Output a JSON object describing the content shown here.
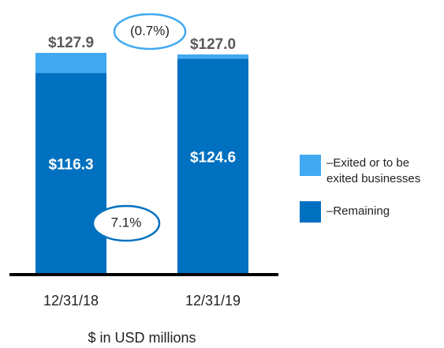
{
  "chart_data": {
    "type": "stacked_bar",
    "subtitle": "$ in USD millions",
    "categories": [
      "12/31/18",
      "12/31/19"
    ],
    "series": [
      {
        "name": "–Remaining",
        "color": "#0070c0",
        "values": [
          116.3,
          124.6
        ],
        "value_labels": [
          "$116.3",
          "$124.6"
        ]
      },
      {
        "name": "–Exited or to be exited businesses",
        "color": "#41a9f2",
        "values": [
          11.6,
          2.4
        ]
      }
    ],
    "totals": [
      127.9,
      127.0
    ],
    "total_labels": [
      "$127.9",
      "$127.0"
    ],
    "annotations": [
      {
        "text": "(0.7%)",
        "color": "#41a9f2"
      },
      {
        "text": "7.1%",
        "color": "#0070c0"
      }
    ]
  }
}
